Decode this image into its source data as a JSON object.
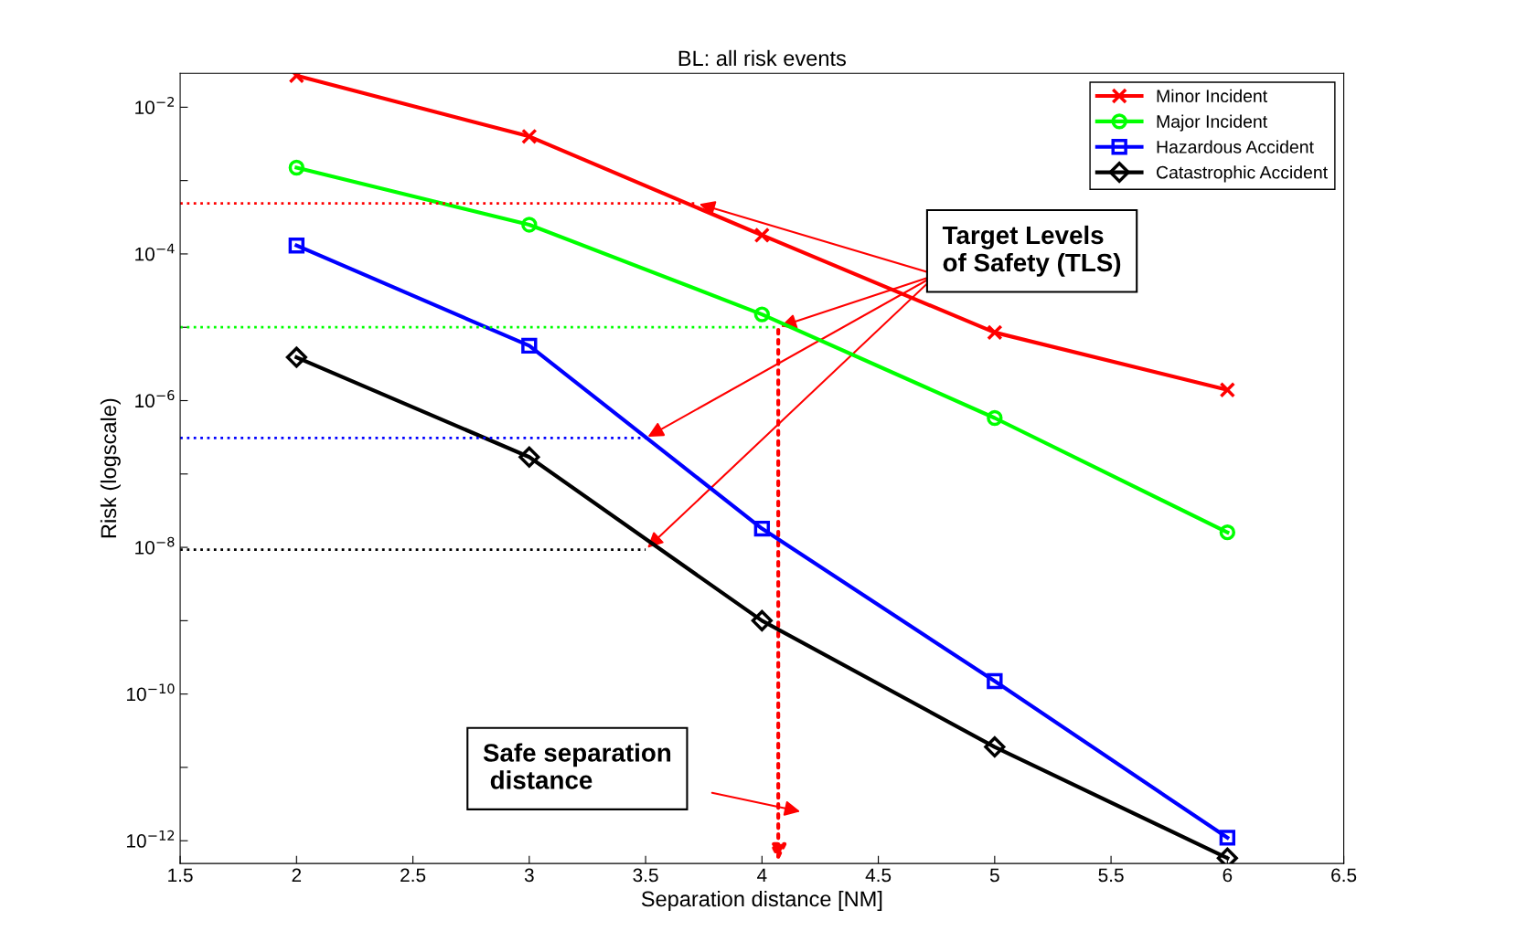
{
  "chart_data": {
    "type": "line",
    "title": "BL: all risk events",
    "xlabel": "Separation distance [NM]",
    "ylabel": "Risk (logscale)",
    "x": [
      2,
      3,
      4,
      5,
      6
    ],
    "series": [
      {
        "name": "Minor Incident",
        "color": "#ff0000",
        "marker": "cross",
        "values": [
          0.027,
          0.004,
          0.00018,
          8.5e-06,
          1.4e-06
        ]
      },
      {
        "name": "Major Incident",
        "color": "#00ff00",
        "marker": "circle",
        "values": [
          0.0015,
          0.00025,
          1.5e-05,
          5.8e-07,
          1.6e-08
        ]
      },
      {
        "name": "Hazardous Accident",
        "color": "#0000ff",
        "marker": "square",
        "values": [
          0.00013,
          5.6e-06,
          1.8e-08,
          1.5e-10,
          1.1e-12
        ]
      },
      {
        "name": "Catastrophic Accident",
        "color": "#000000",
        "marker": "diamond",
        "values": [
          3.9e-06,
          1.7e-07,
          1e-09,
          1.9e-11,
          5.8e-13
        ]
      },
      {
        "type": "line",
        "color": "#ff0000",
        "line_style": "dotted",
        "marker": "none",
        "x": [
          1.5,
          3.72
        ],
        "values": [
          0.00049,
          0.00049
        ]
      },
      {
        "type": "line",
        "color": "#00ff00",
        "line_style": "dotted",
        "marker": "none",
        "x": [
          1.5,
          4.07
        ],
        "values": [
          1e-05,
          1e-05
        ]
      },
      {
        "type": "line",
        "color": "#0000ff",
        "line_style": "dotted",
        "marker": "none",
        "x": [
          1.5,
          3.5
        ],
        "values": [
          3.1e-07,
          3.1e-07
        ]
      },
      {
        "type": "line",
        "color": "#000000",
        "line_style": "dotted",
        "marker": "none",
        "x": [
          1.5,
          3.5
        ],
        "values": [
          9.3e-09,
          9.3e-09
        ]
      }
    ],
    "log": "y",
    "xlim": [
      1.5,
      6.5
    ],
    "ylim": [
      4.9e-13,
      0.029
    ],
    "xticks": [
      1.5,
      2,
      2.5,
      3,
      3.5,
      4,
      4.5,
      5,
      5.5,
      6,
      6.5
    ],
    "yticks": [
      {
        "value": 1e-12,
        "label": "10$^{−12}$"
      },
      {
        "value": 1e-11,
        "label": null
      },
      {
        "value": 1e-10,
        "label": "10$^{−10}$"
      },
      {
        "value": 1e-09,
        "label": null
      },
      {
        "value": 1e-08,
        "label": "10$^{−8}$"
      },
      {
        "value": 1e-07,
        "label": null
      },
      {
        "value": 1e-06,
        "label": "10$^{−6}$"
      },
      {
        "value": 1e-05,
        "label": null
      },
      {
        "value": 0.0001,
        "label": "10$^{−4}$"
      },
      {
        "value": 0.001,
        "label": null
      },
      {
        "value": 0.01,
        "label": "10$^{−2}$"
      }
    ],
    "legend": "top right",
    "grid": false,
    "annotations": [
      {
        "text": "Target Levels\nof Safety (TLS)",
        "x": 3.72,
        "y": 0.00049
      },
      "Safe separation\n distance"
    ]
  }
}
